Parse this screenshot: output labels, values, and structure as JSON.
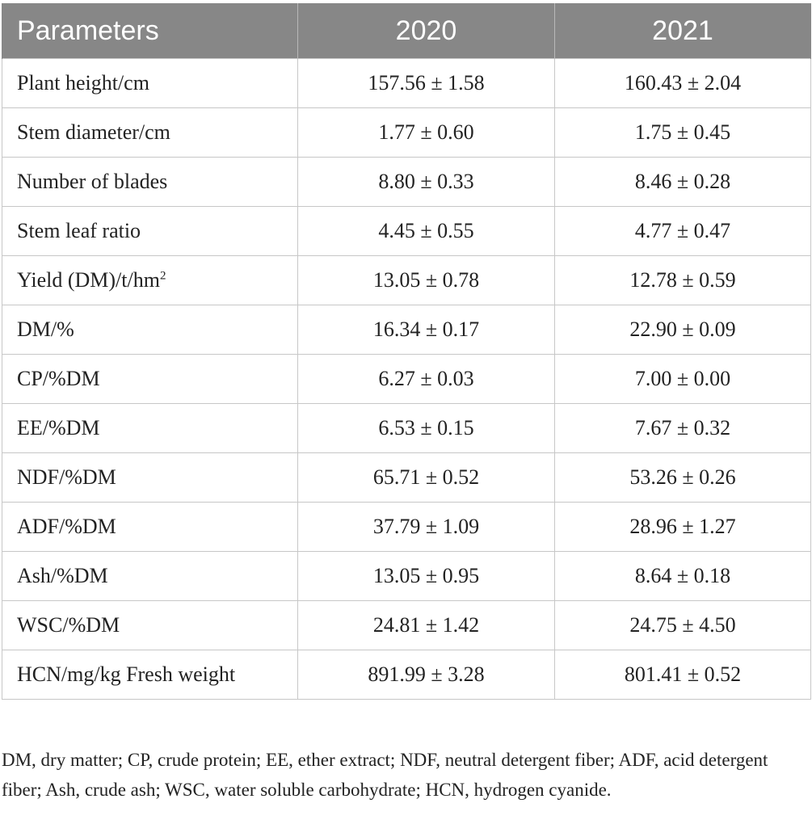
{
  "table": {
    "headers": [
      "Parameters",
      "2020",
      "2021"
    ],
    "rows": [
      {
        "param": "Plant height/cm",
        "sup": "",
        "y2020": "157.56 ± 1.58",
        "y2021": "160.43 ± 2.04"
      },
      {
        "param": "Stem diameter/cm",
        "sup": "",
        "y2020": "1.77 ± 0.60",
        "y2021": "1.75 ± 0.45"
      },
      {
        "param": "Number of blades",
        "sup": "",
        "y2020": "8.80 ± 0.33",
        "y2021": "8.46 ± 0.28"
      },
      {
        "param": "Stem leaf ratio",
        "sup": "",
        "y2020": "4.45 ± 0.55",
        "y2021": "4.77 ± 0.47"
      },
      {
        "param": "Yield (DM)/t/hm",
        "sup": "2",
        "y2020": "13.05 ± 0.78",
        "y2021": "12.78 ± 0.59"
      },
      {
        "param": "DM/%",
        "sup": "",
        "y2020": "16.34 ± 0.17",
        "y2021": "22.90 ± 0.09"
      },
      {
        "param": "CP/%DM",
        "sup": "",
        "y2020": "6.27 ± 0.03",
        "y2021": "7.00 ± 0.00"
      },
      {
        "param": "EE/%DM",
        "sup": "",
        "y2020": "6.53 ± 0.15",
        "y2021": "7.67 ± 0.32"
      },
      {
        "param": "NDF/%DM",
        "sup": "",
        "y2020": "65.71 ± 0.52",
        "y2021": "53.26 ± 0.26"
      },
      {
        "param": "ADF/%DM",
        "sup": "",
        "y2020": "37.79 ± 1.09",
        "y2021": "28.96 ± 1.27"
      },
      {
        "param": "Ash/%DM",
        "sup": "",
        "y2020": "13.05 ± 0.95",
        "y2021": "8.64 ± 0.18"
      },
      {
        "param": "WSC/%DM",
        "sup": "",
        "y2020": "24.81 ± 1.42",
        "y2021": "24.75 ± 4.50"
      },
      {
        "param": "HCN/mg/kg Fresh weight",
        "sup": "",
        "y2020": "891.99 ± 3.28",
        "y2021": "801.41 ± 0.52"
      }
    ]
  },
  "footnote": "DM, dry matter; CP, crude protein; EE, ether extract; NDF, neutral detergent fiber; ADF, acid detergent fiber; Ash, crude ash; WSC, water soluble carbohydrate; HCN, hydrogen cyanide.",
  "colors": {
    "header_bg": "#878787",
    "header_text": "#ffffff",
    "grid": "#c7c7c7"
  }
}
